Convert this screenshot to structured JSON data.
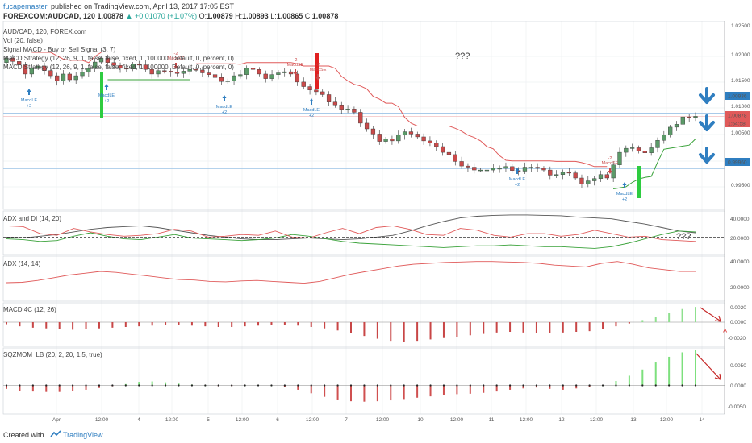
{
  "header": {
    "publisher": "fucapemaster",
    "published_text": "published on TradingView.com, April 13, 2017 17:05 EST",
    "symbol": "FOREXCOM:AUDCAD, 120",
    "last_price": "1.00878",
    "change": "▲ +0.01070 (+1.07%)",
    "open_label": "O:",
    "open": "1.00879",
    "high_label": "H:",
    "high": "1.00893",
    "low_label": "L:",
    "low": "1.00865",
    "close_label": "C:",
    "close": "1.00878"
  },
  "price_pane": {
    "title": "AUD/CAD, 120, FOREX.com",
    "legend": [
      "Vol (20, false)",
      "Signal MACD - Buy or Sell Signal (3, 7)",
      "MACD Strategy (12, 26, 9, 1, false, false, fixed, 1, 100000, Default, 0, percent, 0)",
      "MACD Strategy (12, 26, 9, 1, false, false, fixed, 1, 100000, Default, 0, percent, 0)"
    ],
    "annotation": "???",
    "axis_ticks": [
      "1.02500",
      "1.02000",
      "1.01500",
      "1.01000",
      "1.00500",
      "0.99500"
    ],
    "price_tags": [
      {
        "text": "1.00936",
        "color": "#2f7ec0"
      },
      {
        "text": "1.00878",
        "color": "#e05a5a"
      },
      {
        "text": "1:54:58",
        "color": "#e05a5a"
      },
      {
        "text": "0.99960",
        "color": "#2f7ec0"
      }
    ],
    "signals": [
      {
        "text": "MacdLE",
        "sub": "+2",
        "kind": "long"
      },
      {
        "text": "MacdLE",
        "sub": "+2",
        "kind": "long"
      },
      {
        "text": "MacdSE",
        "sub": "-2",
        "kind": "short"
      },
      {
        "text": "MacdLE",
        "sub": "+2",
        "kind": "long"
      },
      {
        "text": "MacdSE",
        "sub": "-2",
        "kind": "short"
      },
      {
        "text": "MacdSE",
        "sub": "-2",
        "kind": "short"
      },
      {
        "text": "MacdLE",
        "sub": "+2",
        "kind": "long"
      },
      {
        "text": "MacdLE",
        "sub": "+2",
        "kind": "long"
      },
      {
        "text": "MacdSE",
        "sub": "-2",
        "kind": "short"
      },
      {
        "text": "MacdLE",
        "sub": "+2",
        "kind": "long"
      }
    ]
  },
  "panes": {
    "adx_di": {
      "title": "ADX and DI (14, 20)",
      "ticks": [
        "40.0000",
        "20.0000"
      ],
      "annotation": "???"
    },
    "adx": {
      "title": "ADX (14, 14)",
      "ticks": [
        "40.0000",
        "20.0000"
      ]
    },
    "macd4c": {
      "title": "MACD 4C (12, 26)",
      "ticks": [
        "0.0020",
        "0.0000",
        "-0.0020"
      ],
      "annotation": "^"
    },
    "sqzmom": {
      "title": "SQZMOM_LB (20, 2, 20, 1.5, true)",
      "ticks": [
        "0.0050",
        "0.0000",
        "-0.0050"
      ]
    }
  },
  "time_axis": [
    "Apr",
    "12:00",
    "4",
    "12:00",
    "5",
    "12:00",
    "6",
    "12:00",
    "7",
    "12:00",
    "10",
    "12:00",
    "11",
    "12:00",
    "12",
    "12:00",
    "13",
    "12:00",
    "14"
  ],
  "footer": {
    "created": "Created with",
    "brand": "TradingView"
  },
  "colors": {
    "up": "#5b9a68",
    "down": "#c94a4a",
    "stop_red": "#e05a5a",
    "stop_green": "#3aa23a",
    "accent": "#2f7ec0"
  },
  "chart_data": [
    {
      "type": "candlestick",
      "title": "AUD/CAD, 120, FOREX.com",
      "ylim": [
        0.9925,
        1.0255
      ],
      "overlays": [
        "trailing stop (red, above price)",
        "trailing stop (green, below price)",
        "horizontal lines at 1.00936 and 0.99960"
      ],
      "close": [
        1.019,
        1.0184,
        1.0178,
        1.0162,
        1.0173,
        1.0176,
        1.0168,
        1.0159,
        1.015,
        1.0162,
        1.0152,
        1.0159,
        1.0165,
        1.0172,
        1.0183,
        1.019,
        1.0182,
        1.0177,
        1.0172,
        1.0171,
        1.0179,
        1.0178,
        1.017,
        1.0162,
        1.0168,
        1.0167,
        1.0165,
        1.0163,
        1.0167,
        1.017,
        1.0169,
        1.0164,
        1.0161,
        1.0156,
        1.0149,
        1.015,
        1.0159,
        1.0161,
        1.0172,
        1.017,
        1.0162,
        1.0154,
        1.0161,
        1.0164,
        1.0166,
        1.0162,
        1.0148,
        1.014,
        1.0134,
        1.0131,
        1.0126,
        1.0113,
        1.0108,
        1.01,
        1.0101,
        1.0095,
        1.0076,
        1.0066,
        1.0057,
        1.0044,
        1.0048,
        1.0045,
        1.0055,
        1.0061,
        1.0057,
        1.0052,
        1.0045,
        1.0041,
        1.0035,
        1.0025,
        1.0021,
        1.0009,
        1.0001,
        0.9999,
        0.9994,
        0.9994,
        0.9994,
        0.9997,
        0.9997,
        1.0,
        0.9993,
        0.9992,
        0.9999,
        0.9999,
        0.9997,
        0.9994,
        0.9985,
        0.9986,
        0.999,
        0.9989,
        0.998,
        0.9969,
        0.9975,
        0.9979,
        0.9986,
        0.998,
        1.0003,
        1.0025,
        1.0032,
        1.0033,
        1.0027,
        1.0024,
        1.0033,
        1.0046,
        1.0055,
        1.0069,
        1.0074,
        1.0087,
        1.0086,
        1.0088
      ]
    },
    {
      "type": "line",
      "title": "ADX and DI (14, 20)",
      "ylim": [
        0,
        50
      ],
      "series": [
        {
          "name": "ADX",
          "color": "#555555",
          "values": [
            20,
            19,
            21,
            23,
            26,
            29,
            31,
            32,
            33,
            31,
            28,
            25,
            22,
            20,
            18,
            17,
            17,
            18,
            19,
            18,
            17,
            18,
            20,
            22,
            27,
            33,
            38,
            42,
            44,
            45,
            45.5,
            45.5,
            45,
            44.5,
            43,
            42,
            41,
            38,
            35,
            31,
            27,
            25
          ]
        },
        {
          "name": "+DI",
          "color": "#3aa23a",
          "values": [
            18,
            17,
            15,
            16,
            21,
            25,
            21,
            18,
            17,
            20,
            23,
            19,
            18,
            17,
            16,
            17,
            19,
            23,
            21,
            18,
            15,
            13,
            12,
            11,
            10,
            9,
            8,
            9,
            10,
            10,
            11,
            10,
            9,
            9,
            8,
            7,
            9,
            13,
            18,
            23,
            27,
            26
          ]
        },
        {
          "name": "-DI",
          "color": "#e05a5a",
          "values": [
            33,
            32,
            24,
            22,
            30,
            26,
            23,
            21,
            22,
            24,
            29,
            27,
            20,
            21,
            23,
            22,
            27,
            20,
            19,
            25,
            30,
            24,
            31,
            33,
            29,
            23,
            22,
            30,
            28,
            22,
            20,
            24,
            24,
            21,
            23,
            28,
            24,
            20,
            21,
            17,
            16,
            15
          ]
        },
        {
          "name": "threshold",
          "color": "#333333",
          "values": [
            20,
            20
          ]
        }
      ]
    },
    {
      "type": "line",
      "title": "ADX (14, 14)",
      "ylim": [
        0,
        50
      ],
      "series": [
        {
          "name": "ADX",
          "color": "#e05a5a",
          "values": [
            20.5,
            21,
            23,
            26,
            29,
            31,
            33,
            32,
            30,
            28,
            26,
            24,
            23.5,
            22,
            21.5,
            22.5,
            23,
            22,
            21,
            20,
            22,
            26,
            30,
            33,
            36,
            39,
            41,
            42,
            43,
            43.5,
            44,
            44,
            43.5,
            43,
            42,
            40,
            39,
            38,
            42,
            44,
            41,
            37,
            35,
            33,
            33
          ]
        }
      ]
    },
    {
      "type": "bar",
      "title": "MACD 4C (12, 26)",
      "ylim": [
        -0.0035,
        0.0028
      ],
      "values": [
        -0.0003,
        -0.0006,
        -0.0008,
        -0.0009,
        -0.001,
        -0.0011,
        -0.001,
        -0.0009,
        -0.0008,
        -0.0007,
        -0.0006,
        -0.0005,
        -0.0004,
        -0.0004,
        -0.0005,
        -0.0006,
        -0.0007,
        -0.0007,
        -0.0006,
        -0.0005,
        -0.0004,
        -0.0004,
        -0.0005,
        -0.0007,
        -0.0009,
        -0.0012,
        -0.0016,
        -0.002,
        -0.0024,
        -0.0027,
        -0.0028,
        -0.0027,
        -0.0025,
        -0.0023,
        -0.0021,
        -0.0019,
        -0.0017,
        -0.0015,
        -0.0014,
        -0.0015,
        -0.0016,
        -0.0016,
        -0.0015,
        -0.0014,
        -0.0013,
        -0.001,
        -0.0006,
        -0.0002,
        0.0003,
        0.0008,
        0.0014,
        0.0019,
        0.0022
      ]
    },
    {
      "type": "bar",
      "title": "SQZMOM_LB (20, 2, 20, 1.5, true)",
      "ylim": [
        -0.0065,
        0.0085
      ],
      "values": [
        -0.0008,
        -0.0012,
        -0.0014,
        -0.0015,
        -0.0015,
        -0.0013,
        -0.001,
        -0.0006,
        -0.0002,
        0.0003,
        0.0008,
        0.0009,
        0.0007,
        0.0004,
        0.0002,
        0.0,
        -0.0002,
        -0.0001,
        0.0,
        0.0001,
        0.0,
        -0.0004,
        -0.001,
        -0.0018,
        -0.0026,
        -0.0032,
        -0.0036,
        -0.0037,
        -0.0036,
        -0.0034,
        -0.0031,
        -0.0028,
        -0.0025,
        -0.0022,
        -0.002,
        -0.0019,
        -0.0017,
        -0.0014,
        -0.001,
        -0.0007,
        -0.0005,
        -0.0008,
        -0.001,
        -0.0007,
        -0.0003,
        0.0,
        0.001,
        0.0022,
        0.0036,
        0.0052,
        0.0065,
        0.0075,
        0.008
      ]
    }
  ]
}
